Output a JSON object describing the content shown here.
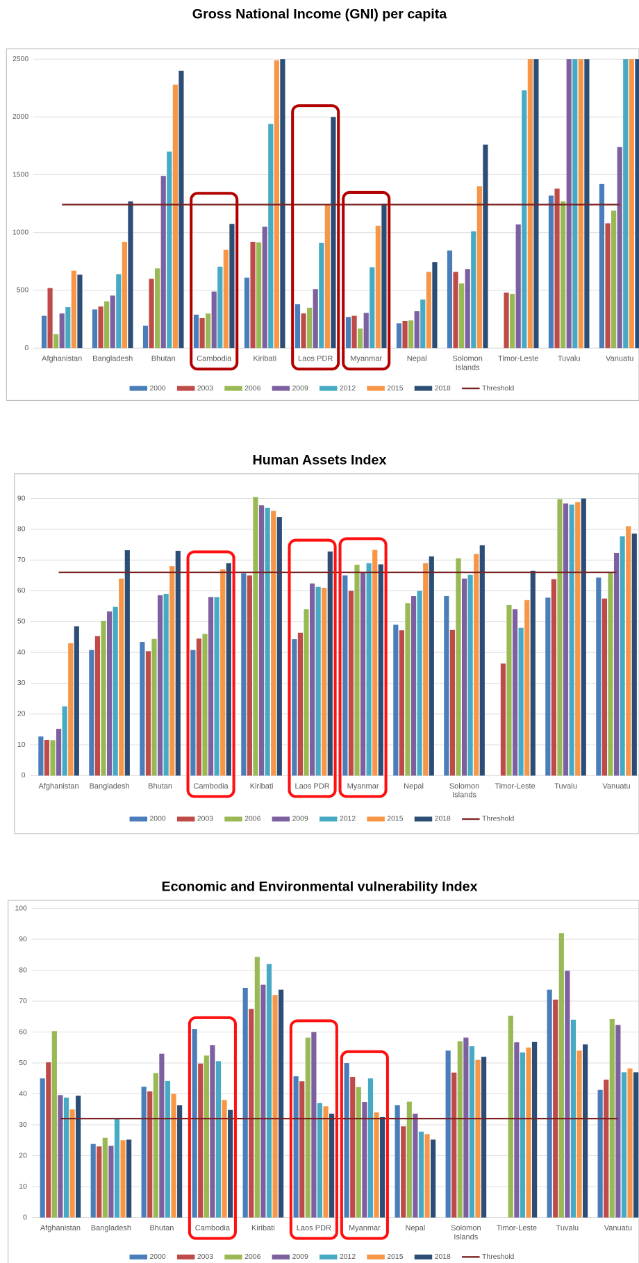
{
  "chart_data": [
    {
      "type": "bar",
      "title": "Gross National Income (GNI) per capita",
      "categories": [
        "Afghanistan",
        "Bangladesh",
        "Bhutan",
        "Cambodia",
        "Kiribati",
        "Laos PDR",
        "Myanmar",
        "Nepal",
        "Solomon Islands",
        "Timor-Leste",
        "Tuvalu",
        "Vanuatu"
      ],
      "series": [
        {
          "name": "2000",
          "color": "#4a7ebb",
          "values": [
            280,
            335,
            195,
            290,
            610,
            380,
            270,
            215,
            845,
            null,
            1320,
            1420
          ]
        },
        {
          "name": "2003",
          "color": "#be4b48",
          "values": [
            520,
            360,
            600,
            260,
            920,
            300,
            280,
            235,
            660,
            480,
            1380,
            1080
          ]
        },
        {
          "name": "2006",
          "color": "#98b954",
          "values": [
            120,
            405,
            690,
            300,
            915,
            350,
            170,
            240,
            560,
            470,
            1270,
            1190
          ]
        },
        {
          "name": "2009",
          "color": "#7d60a0",
          "values": [
            300,
            455,
            1490,
            490,
            1050,
            510,
            305,
            320,
            685,
            1070,
            2500,
            1740
          ]
        },
        {
          "name": "2012",
          "color": "#46aac5",
          "values": [
            355,
            640,
            1700,
            705,
            1940,
            910,
            700,
            420,
            1010,
            2230,
            2500,
            2500
          ]
        },
        {
          "name": "2015",
          "color": "#f79646",
          "values": [
            670,
            920,
            2280,
            850,
            2490,
            1240,
            1060,
            660,
            1400,
            2500,
            2500,
            2500
          ]
        },
        {
          "name": "2018",
          "color": "#2c4d75",
          "values": [
            635,
            1270,
            2400,
            1075,
            2500,
            2000,
            1250,
            745,
            1760,
            2500,
            2500,
            2500
          ]
        }
      ],
      "threshold": {
        "name": "Threshold",
        "value": 1242,
        "color": "#7b2222"
      },
      "ylim": [
        0,
        2500
      ],
      "yticks": [
        0,
        500,
        1000,
        1500,
        2000,
        2500
      ],
      "grid": true
    },
    {
      "type": "bar",
      "title": "Human Assets Index",
      "categories": [
        "Afghanistan",
        "Bangladesh",
        "Bhutan",
        "Cambodia",
        "Kiribati",
        "Laos PDR",
        "Myanmar",
        "Nepal",
        "Solomon Islands",
        "Timor-Leste",
        "Tuvalu",
        "Vanuatu"
      ],
      "series": [
        {
          "name": "2000",
          "color": "#4a7ebb",
          "values": [
            12.7,
            40.8,
            43.4,
            40.8,
            65.7,
            44.3,
            65,
            49,
            58.3,
            null,
            57.8,
            64.3
          ]
        },
        {
          "name": "2003",
          "color": "#be4b48",
          "values": [
            11.6,
            45.3,
            40.4,
            44.5,
            65,
            46.4,
            60,
            47.2,
            47.3,
            36.4,
            63.8,
            57.5
          ]
        },
        {
          "name": "2006",
          "color": "#98b954",
          "values": [
            11.5,
            50.2,
            44.4,
            46,
            90.5,
            54,
            68.5,
            56,
            70.6,
            55.4,
            89.8,
            66
          ]
        },
        {
          "name": "2009",
          "color": "#7d60a0",
          "values": [
            15.2,
            53.3,
            58.6,
            58,
            87.8,
            62.4,
            66,
            58.3,
            64,
            54,
            88.4,
            72.3
          ]
        },
        {
          "name": "2012",
          "color": "#46aac5",
          "values": [
            22.5,
            54.8,
            59,
            58,
            87,
            61.3,
            69,
            60,
            65.2,
            48,
            88,
            77.7
          ]
        },
        {
          "name": "2015",
          "color": "#f79646",
          "values": [
            43,
            64,
            68,
            67,
            86,
            61,
            73.3,
            69,
            72,
            57,
            88.8,
            81
          ]
        },
        {
          "name": "2018",
          "color": "#2c4d75",
          "values": [
            48.5,
            73.2,
            73,
            69,
            84,
            72.8,
            68.6,
            71.2,
            74.8,
            66.5,
            90,
            78.6
          ]
        }
      ],
      "threshold": {
        "name": "Threshold",
        "value": 66,
        "color": "#7b2222"
      },
      "ylim": [
        0,
        97
      ],
      "yticks": [
        0,
        10,
        20,
        30,
        40,
        50,
        60,
        70,
        80,
        90
      ],
      "grid": true
    },
    {
      "type": "bar",
      "title": "Economic and Environmental vulnerability Index",
      "categories": [
        "Afghanistan",
        "Bangladesh",
        "Bhutan",
        "Cambodia",
        "Kiribati",
        "Laos PDR",
        "Myanmar",
        "Nepal",
        "Solomon Islands",
        "Timor-Leste",
        "Tuvalu",
        "Vanuatu"
      ],
      "series": [
        {
          "name": "2000",
          "color": "#4a7ebb",
          "values": [
            45,
            23.8,
            42.3,
            61,
            74.3,
            45.7,
            50,
            36.3,
            54,
            null,
            73.7,
            41.3
          ]
        },
        {
          "name": "2003",
          "color": "#be4b48",
          "values": [
            50.2,
            23,
            40.8,
            49.8,
            67.5,
            44.1,
            45.5,
            29.5,
            46.9,
            null,
            70.5,
            44.6
          ]
        },
        {
          "name": "2006",
          "color": "#98b954",
          "values": [
            60.3,
            25.8,
            46.7,
            52.4,
            84.3,
            58.2,
            42.2,
            37.5,
            57,
            65.3,
            92,
            64.2
          ]
        },
        {
          "name": "2009",
          "color": "#7d60a0",
          "values": [
            39.6,
            23.2,
            53,
            55.8,
            75.3,
            60,
            37.4,
            33.6,
            58.2,
            56.7,
            79.8,
            62.3
          ]
        },
        {
          "name": "2012",
          "color": "#46aac5",
          "values": [
            38.8,
            32,
            44.2,
            50.6,
            82,
            37,
            45,
            27.8,
            55.4,
            53.4,
            64,
            47
          ]
        },
        {
          "name": "2015",
          "color": "#f79646",
          "values": [
            35,
            25,
            40,
            38,
            72,
            36,
            34,
            27,
            51,
            55,
            54,
            48.2
          ]
        },
        {
          "name": "2018",
          "color": "#2c4d75",
          "values": [
            39.4,
            25.2,
            36.3,
            34.8,
            73.7,
            33.6,
            32.5,
            25.2,
            52,
            56.8,
            56,
            47
          ]
        }
      ],
      "threshold": {
        "name": "Threshold",
        "value": 32,
        "color": "#7b2222"
      },
      "ylim": [
        0,
        100
      ],
      "yticks": [
        0,
        10,
        20,
        30,
        40,
        50,
        60,
        70,
        80,
        90,
        100
      ],
      "grid": true
    }
  ]
}
